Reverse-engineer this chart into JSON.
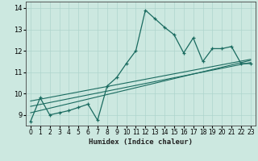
{
  "xlabel": "Humidex (Indice chaleur)",
  "bg_color": "#cce8e0",
  "line_color": "#1a6b60",
  "grid_color": "#aed4cc",
  "xlim": [
    -0.5,
    23.5
  ],
  "ylim": [
    8.5,
    14.3
  ],
  "yticks": [
    9,
    10,
    11,
    12,
    13,
    14
  ],
  "xticks": [
    0,
    1,
    2,
    3,
    4,
    5,
    6,
    7,
    8,
    9,
    10,
    11,
    12,
    13,
    14,
    15,
    16,
    17,
    18,
    19,
    20,
    21,
    22,
    23
  ],
  "series1_x": [
    0,
    1,
    2,
    3,
    4,
    5,
    6,
    7,
    8,
    9,
    10,
    11,
    12,
    13,
    14,
    15,
    16,
    17,
    18,
    19,
    20,
    21,
    22,
    23
  ],
  "series1_y": [
    8.7,
    9.8,
    9.0,
    9.1,
    9.2,
    9.35,
    9.5,
    8.75,
    10.35,
    10.75,
    11.4,
    12.0,
    13.9,
    13.5,
    13.1,
    12.75,
    11.9,
    12.6,
    11.5,
    12.1,
    12.1,
    12.2,
    11.4,
    11.4
  ],
  "trend1_x": [
    0,
    23
  ],
  "trend1_y": [
    9.1,
    11.55
  ],
  "trend2_x": [
    0,
    23
  ],
  "trend2_y": [
    9.4,
    11.45
  ],
  "trend3_x": [
    0,
    23
  ],
  "trend3_y": [
    9.65,
    11.6
  ],
  "xlabel_fontsize": 6.5,
  "tick_fontsize": 5.5
}
